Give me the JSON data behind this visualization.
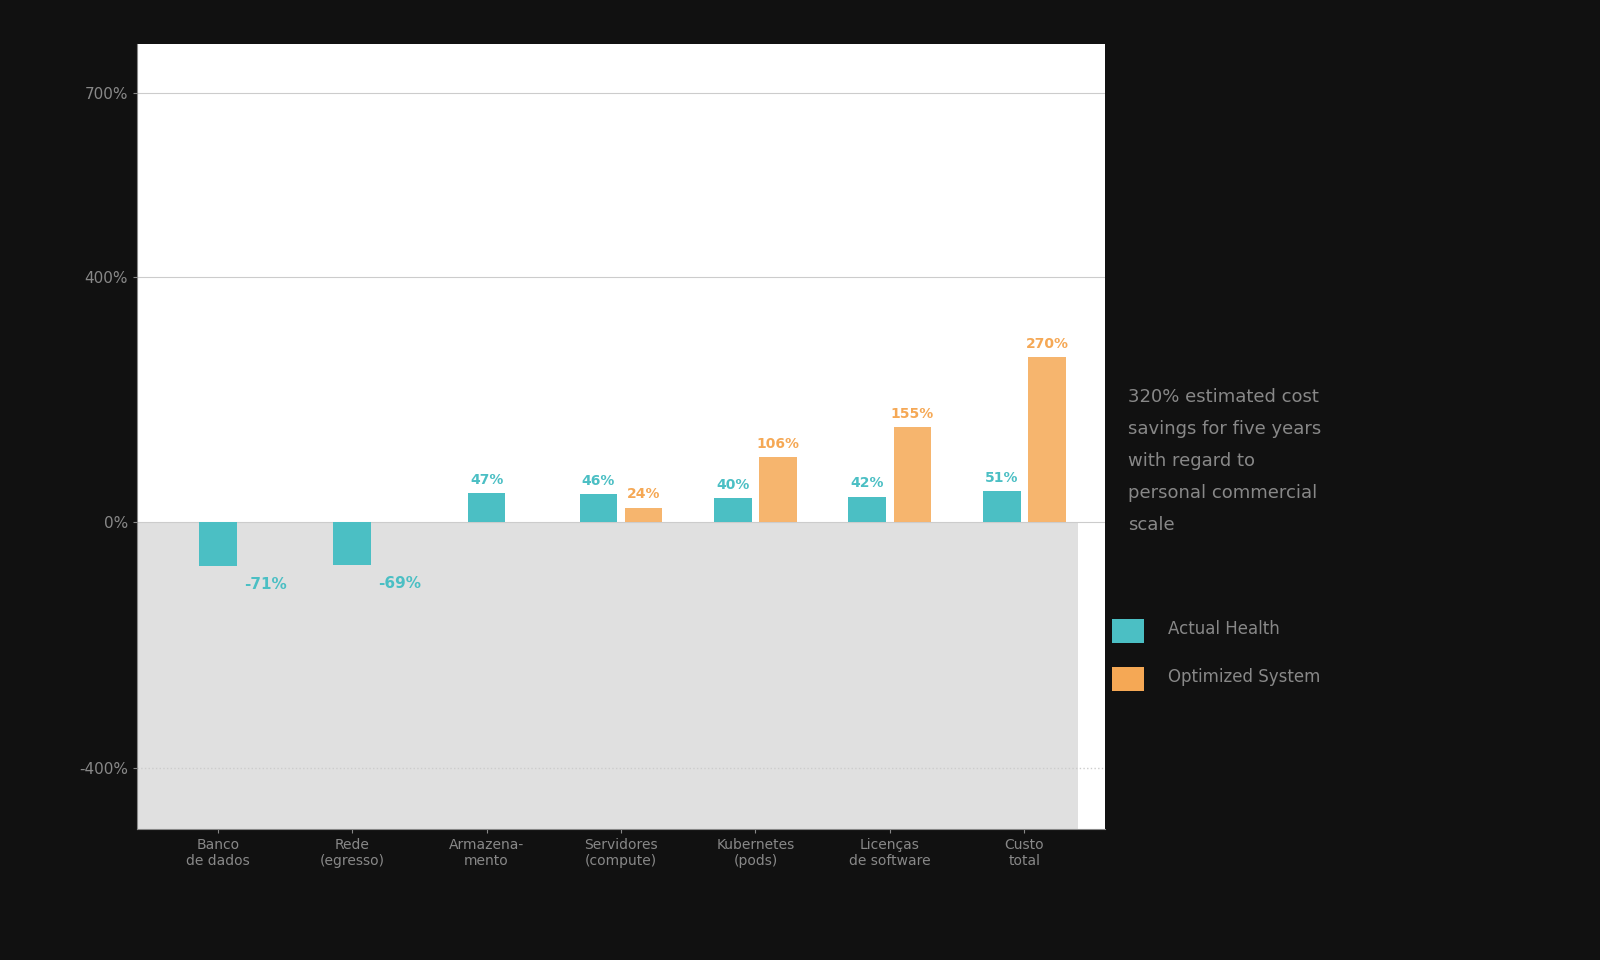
{
  "categories": [
    "Banco\nde dados",
    "Rede\n(egresso)",
    "Armazena-\nmento",
    "Servidores\n(compute)",
    "Kubernetes\n(pods)",
    "Licenças\nde software",
    "Custo\ntotal"
  ],
  "actual_values": [
    -71,
    -69,
    47,
    46,
    40,
    42,
    51
  ],
  "optimized_values": [
    null,
    null,
    null,
    24,
    106,
    155,
    270
  ],
  "actual_labels": [
    "-71%",
    "-69%",
    "47%",
    "46%",
    "40%",
    "42%",
    "51%"
  ],
  "optimized_labels": [
    null,
    null,
    null,
    "24%",
    "106%",
    "155%",
    "270%"
  ],
  "actual_color": "#4BBFC4",
  "optimized_color": "#F5A855",
  "annotation_text": "320% estimated cost\nsavings for five years\nwith regard to\npersonal commercial\nscale",
  "legend_actual": "Actual Health",
  "legend_optimized": "Optimized System",
  "ylim": [
    -500,
    780
  ],
  "yticks": [
    -400,
    0,
    400,
    700
  ],
  "yticklabels": [
    "-400%",
    "0%",
    "400%",
    "700%"
  ],
  "bar_width": 0.28,
  "fig_bg": "#111111",
  "plot_bg": "#ffffff",
  "plot_area_color": "#ffffff",
  "negative_fill_color": "#e0e0e0",
  "text_color": "#555555",
  "ann_text_color": "#888888",
  "grid_color": "#cccccc",
  "spine_color": "#888888",
  "axis_label_color": "#888888"
}
